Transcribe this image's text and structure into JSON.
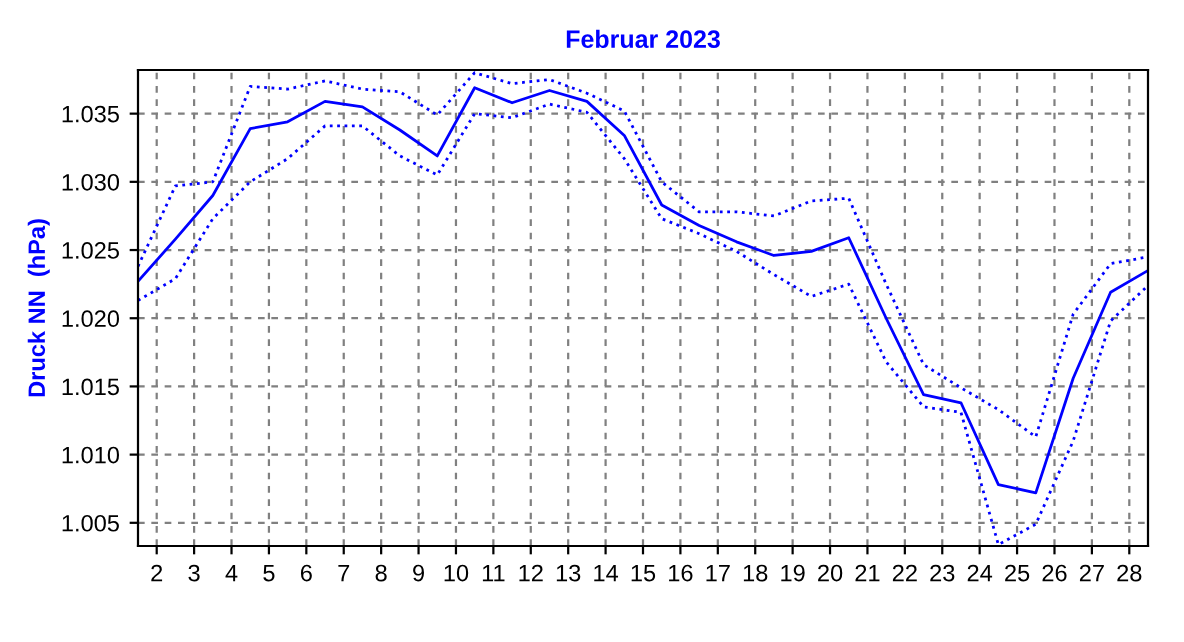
{
  "chart_data": {
    "type": "line",
    "title": "Februar 2023",
    "ylabel": "Druck NN  (hPa)",
    "x": [
      1.5,
      2.5,
      3.5,
      4.5,
      5.5,
      6.5,
      7.5,
      8.5,
      9.5,
      10.5,
      11.5,
      12.5,
      13.5,
      14.5,
      15.5,
      16.5,
      17.5,
      18.5,
      19.5,
      20.5,
      21.5,
      22.5,
      23.5,
      24.5,
      25.5,
      26.5,
      27.5,
      28.5
    ],
    "series": [
      {
        "color": "#0000ff",
        "line_style": "solid",
        "values": [
          1.0227,
          1.0258,
          1.029,
          1.0339,
          1.0344,
          1.0359,
          1.0355,
          1.0338,
          1.0319,
          1.0369,
          1.0358,
          1.0367,
          1.0359,
          1.0334,
          1.0283,
          1.0268,
          1.0256,
          1.0246,
          1.0249,
          1.0259,
          1.02,
          1.0144,
          1.0138,
          1.0078,
          1.0072,
          1.0156,
          1.0219,
          1.0235
        ]
      },
      {
        "color": "#0000ff",
        "line_style": "dotted",
        "values": [
          1.0238,
          1.0297,
          1.03,
          1.037,
          1.0368,
          1.0374,
          1.0368,
          1.0366,
          1.0349,
          1.038,
          1.0372,
          1.0375,
          1.0365,
          1.0352,
          1.03,
          1.0278,
          1.0278,
          1.0275,
          1.0286,
          1.0288,
          1.0225,
          1.0166,
          1.0149,
          1.0133,
          1.0113,
          1.0203,
          1.024,
          1.0245
        ]
      },
      {
        "color": "#0000ff",
        "line_style": "dotted",
        "values": [
          1.0213,
          1.0229,
          1.0273,
          1.03,
          1.0317,
          1.0341,
          1.0341,
          1.0319,
          1.0305,
          1.035,
          1.0347,
          1.0357,
          1.0351,
          1.0317,
          1.0273,
          1.0262,
          1.0249,
          1.0232,
          1.0216,
          1.0225,
          1.0168,
          1.0135,
          1.0131,
          1.0034,
          1.0049,
          1.011,
          1.0198,
          1.0224
        ]
      }
    ],
    "xlim": [
      1.5,
      28.5
    ],
    "xticks": [
      2,
      3,
      4,
      5,
      6,
      7,
      8,
      9,
      10,
      11,
      12,
      13,
      14,
      15,
      16,
      17,
      18,
      19,
      20,
      21,
      22,
      23,
      24,
      25,
      26,
      27,
      28
    ],
    "ylim": [
      1.0033,
      1.0382
    ],
    "yticks": [
      {
        "value": 1.005,
        "label": "1.005"
      },
      {
        "value": 1.01,
        "label": "1.010"
      },
      {
        "value": 1.015,
        "label": "1.015"
      },
      {
        "value": 1.02,
        "label": "1.020"
      },
      {
        "value": 1.025,
        "label": "1.025"
      },
      {
        "value": 1.03,
        "label": "1.030"
      },
      {
        "value": 1.035,
        "label": "1.035"
      }
    ],
    "grid": true
  }
}
